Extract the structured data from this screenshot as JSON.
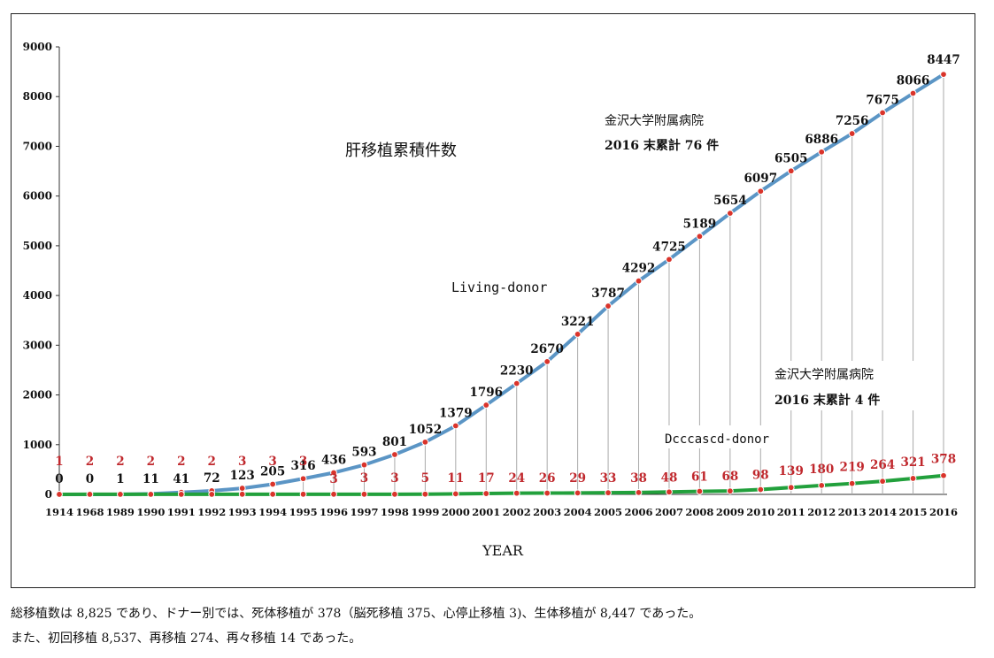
{
  "chart_data": {
    "type": "line",
    "title": "肝移植累積件数",
    "xlabel": "YEAR",
    "ylabel": "",
    "ylim": [
      0,
      9000
    ],
    "yticks": [
      0,
      1000,
      2000,
      3000,
      4000,
      5000,
      6000,
      7000,
      8000,
      9000
    ],
    "grid": false,
    "categories": [
      "1914",
      "1968",
      "1989",
      "1990",
      "1991",
      "1992",
      "1993",
      "1994",
      "1995",
      "1996",
      "1997",
      "1998",
      "1999",
      "2000",
      "2001",
      "2002",
      "2003",
      "2004",
      "2005",
      "2006",
      "2007",
      "2008",
      "2009",
      "2010",
      "2011",
      "2012",
      "2013",
      "2014",
      "2015",
      "2016"
    ],
    "series": [
      {
        "name": "Living-donor",
        "color": "#5b95c5",
        "label_color": "#111111",
        "values": [
          0,
          0,
          1,
          11,
          41,
          72,
          123,
          205,
          316,
          436,
          593,
          801,
          1052,
          1379,
          1796,
          2230,
          2670,
          3221,
          3787,
          4292,
          4725,
          5189,
          5654,
          6097,
          6505,
          6886,
          7256,
          7675,
          8066,
          8447
        ]
      },
      {
        "name": "Dcccascd-donor",
        "color": "#22a03c",
        "label_color": "#c0282d",
        "values": [
          1,
          2,
          2,
          2,
          2,
          2,
          3,
          3,
          3,
          3,
          3,
          3,
          5,
          11,
          17,
          24,
          26,
          29,
          33,
          38,
          48,
          61,
          68,
          98,
          139,
          180,
          219,
          264,
          321,
          378
        ]
      }
    ],
    "marker_color": "#d9342b",
    "annotations": [
      {
        "lines": [
          "金沢大学附属病院",
          "2016 末累計 76 件"
        ]
      },
      {
        "lines": [
          "金沢大学附属病院",
          "2016 末累計 4 件"
        ]
      }
    ]
  },
  "notes": [
    "総移植数は 8,825 であり、ドナー別では、死体移植が 378（脳死移植 375、心停止移植 3)、生体移植が 8,447 であった。",
    "また、初回移植 8,537、再移植 274、再々移植 14 であった。"
  ]
}
